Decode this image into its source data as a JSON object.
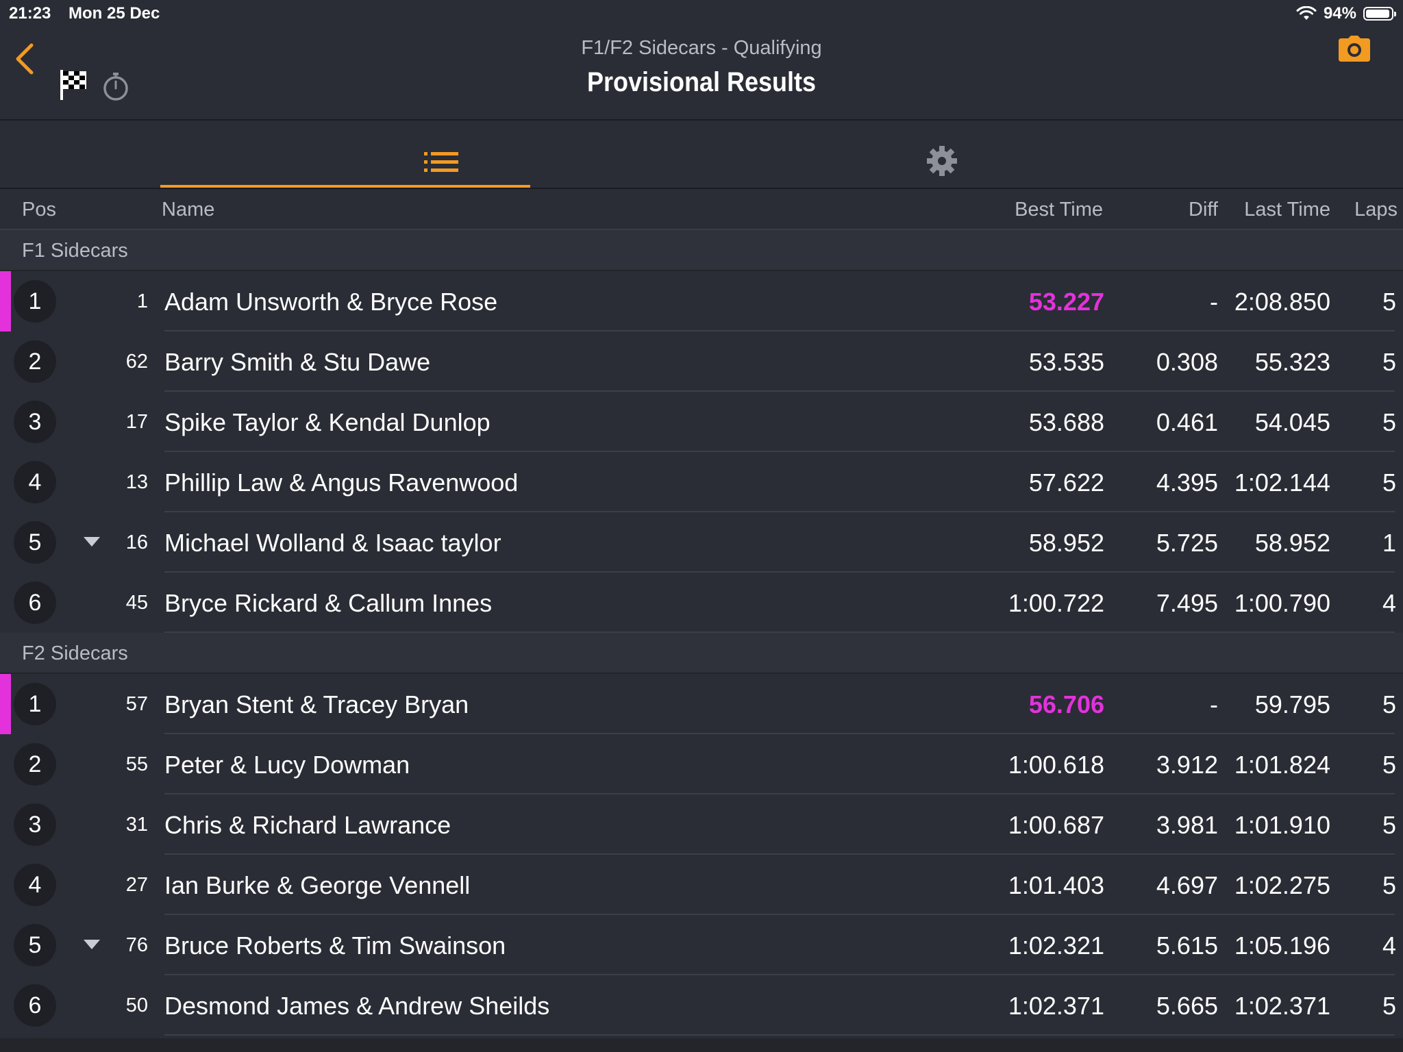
{
  "status_bar": {
    "time": "21:23",
    "date": "Mon 25 Dec",
    "battery_percent": "94%",
    "battery_level": 0.94
  },
  "header": {
    "subtitle": "F1/F2 Sidecars - Qualifying",
    "title": "Provisional Results",
    "accent_color": "#f39a23"
  },
  "tabs": [
    {
      "icon": "list-icon",
      "active": true
    },
    {
      "icon": "gear-icon",
      "active": false
    }
  ],
  "columns": {
    "pos": "Pos",
    "name": "Name",
    "best_time": "Best Time",
    "diff": "Diff",
    "last_time": "Last Time",
    "laps": "Laps"
  },
  "colors": {
    "fastest": "#e332dc",
    "background": "#2a2d35"
  },
  "groups": [
    {
      "name": "F1 Sidecars",
      "rows": [
        {
          "pos": "1",
          "num": "1",
          "name": "Adam Unsworth & Bryce Rose",
          "best": "53.227",
          "diff": "-",
          "last": "2:08.850",
          "laps": "5",
          "fastest": true,
          "trend": false
        },
        {
          "pos": "2",
          "num": "62",
          "name": "Barry Smith & Stu Dawe",
          "best": "53.535",
          "diff": "0.308",
          "last": "55.323",
          "laps": "5",
          "fastest": false,
          "trend": false
        },
        {
          "pos": "3",
          "num": "17",
          "name": "Spike Taylor & Kendal Dunlop",
          "best": "53.688",
          "diff": "0.461",
          "last": "54.045",
          "laps": "5",
          "fastest": false,
          "trend": false
        },
        {
          "pos": "4",
          "num": "13",
          "name": "Phillip Law & Angus Ravenwood",
          "best": "57.622",
          "diff": "4.395",
          "last": "1:02.144",
          "laps": "5",
          "fastest": false,
          "trend": false
        },
        {
          "pos": "5",
          "num": "16",
          "name": "Michael Wolland & Isaac taylor",
          "best": "58.952",
          "diff": "5.725",
          "last": "58.952",
          "laps": "1",
          "fastest": false,
          "trend": true
        },
        {
          "pos": "6",
          "num": "45",
          "name": "Bryce Rickard & Callum Innes",
          "best": "1:00.722",
          "diff": "7.495",
          "last": "1:00.790",
          "laps": "4",
          "fastest": false,
          "trend": false
        }
      ]
    },
    {
      "name": "F2 Sidecars",
      "rows": [
        {
          "pos": "1",
          "num": "57",
          "name": "Bryan Stent & Tracey Bryan",
          "best": "56.706",
          "diff": "-",
          "last": "59.795",
          "laps": "5",
          "fastest": true,
          "trend": false
        },
        {
          "pos": "2",
          "num": "55",
          "name": "Peter & Lucy Dowman",
          "best": "1:00.618",
          "diff": "3.912",
          "last": "1:01.824",
          "laps": "5",
          "fastest": false,
          "trend": false
        },
        {
          "pos": "3",
          "num": "31",
          "name": "Chris & Richard Lawrance",
          "best": "1:00.687",
          "diff": "3.981",
          "last": "1:01.910",
          "laps": "5",
          "fastest": false,
          "trend": false
        },
        {
          "pos": "4",
          "num": "27",
          "name": "Ian Burke & George Vennell",
          "best": "1:01.403",
          "diff": "4.697",
          "last": "1:02.275",
          "laps": "5",
          "fastest": false,
          "trend": false
        },
        {
          "pos": "5",
          "num": "76",
          "name": "Bruce Roberts & Tim Swainson",
          "best": "1:02.321",
          "diff": "5.615",
          "last": "1:05.196",
          "laps": "4",
          "fastest": false,
          "trend": true
        },
        {
          "pos": "6",
          "num": "50",
          "name": "Desmond James & Andrew Sheilds",
          "best": "1:02.371",
          "diff": "5.665",
          "last": "1:02.371",
          "laps": "5",
          "fastest": false,
          "trend": false
        }
      ]
    }
  ]
}
